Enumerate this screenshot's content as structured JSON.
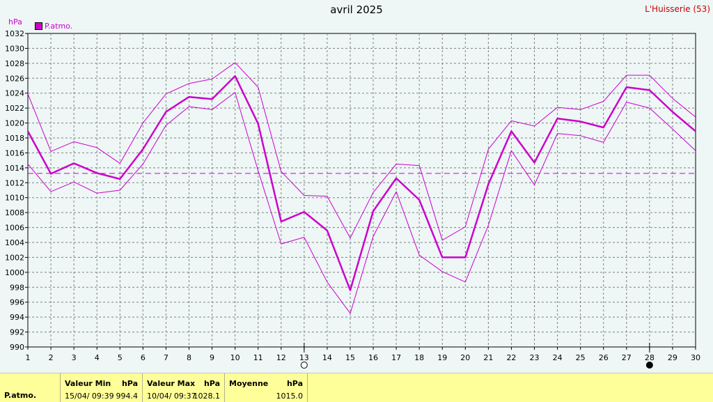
{
  "header": {
    "title": "avril 2025",
    "location": "L'Huisserie (53)",
    "unit": "hPa",
    "legend_label": "P.atmo."
  },
  "colors": {
    "series": "#cc00cc",
    "grid": "#808080",
    "background": "#eef6f6",
    "stats_background": "#ffff99"
  },
  "chart_data": {
    "type": "line",
    "title": "avril 2025",
    "ylabel": "hPa",
    "ylim": [
      990,
      1032
    ],
    "yticks": [
      990,
      992,
      994,
      996,
      998,
      1000,
      1002,
      1004,
      1006,
      1008,
      1010,
      1012,
      1014,
      1016,
      1018,
      1020,
      1022,
      1024,
      1026,
      1028,
      1030,
      1032
    ],
    "x": [
      1,
      2,
      3,
      4,
      5,
      6,
      7,
      8,
      9,
      10,
      11,
      12,
      13,
      14,
      15,
      16,
      17,
      18,
      19,
      20,
      21,
      22,
      23,
      24,
      25,
      26,
      27,
      28,
      29,
      30
    ],
    "grid": true,
    "legend": "top-left",
    "series": [
      {
        "name": "P.atmo.",
        "role": "mean",
        "values": [
          1018.9,
          1013.2,
          1014.6,
          1013.3,
          1012.5,
          1016.5,
          1021.5,
          1023.5,
          1023.2,
          1026.3,
          1019.9,
          1006.8,
          1008.1,
          1005.6,
          997.6,
          1008.2,
          1012.6,
          1009.7,
          1002.0,
          1002.0,
          1011.8,
          1018.9,
          1014.7,
          1020.6,
          1020.2,
          1019.4,
          1024.8,
          1024.4,
          1021.5,
          1018.9
        ]
      },
      {
        "role": "max",
        "values": [
          1023.9,
          1016.2,
          1017.5,
          1016.7,
          1014.6,
          1020.0,
          1023.9,
          1025.3,
          1025.9,
          1028.1,
          1024.8,
          1013.5,
          1010.3,
          1010.2,
          1004.6,
          1010.7,
          1014.5,
          1014.3,
          1004.3,
          1006.1,
          1016.5,
          1020.3,
          1019.6,
          1022.1,
          1021.8,
          1022.9,
          1026.4,
          1026.4,
          1023.3,
          1020.8
        ]
      },
      {
        "role": "min",
        "values": [
          1014.5,
          1010.8,
          1012.1,
          1010.6,
          1011.0,
          1014.5,
          1019.7,
          1022.2,
          1021.8,
          1024.1,
          1013.6,
          1003.8,
          1004.7,
          998.7,
          994.5,
          1004.8,
          1010.8,
          1002.3,
          1000.1,
          998.7,
          1006.3,
          1016.3,
          1011.7,
          1018.6,
          1018.3,
          1017.4,
          1022.8,
          1022.0,
          1019.2,
          1016.3
        ]
      }
    ],
    "reference_line": 1013.25,
    "moon_phases": [
      {
        "day": 13,
        "phase": "full"
      },
      {
        "day": 28,
        "phase": "new"
      }
    ]
  },
  "stats": {
    "series_label": "P.atmo.",
    "min_header": "Valeur Min",
    "min_unit": "hPa",
    "min_when": "15/04/  09:39",
    "min_value": "994.4",
    "max_header": "Valeur Max",
    "max_unit": "hPa",
    "max_when": "10/04/  09:37",
    "max_value": "1028.1",
    "mean_header": "Moyenne",
    "mean_unit": "hPa",
    "mean_value": "1015.0"
  }
}
